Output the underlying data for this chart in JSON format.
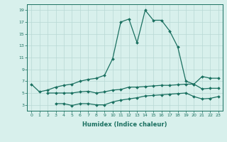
{
  "xlabel": "Humidex (Indice chaleur)",
  "x_values": [
    0,
    1,
    2,
    3,
    4,
    5,
    6,
    7,
    8,
    9,
    10,
    11,
    12,
    13,
    14,
    15,
    16,
    17,
    18,
    19,
    20,
    21,
    22,
    23
  ],
  "line1": [
    6.5,
    5.2,
    5.5,
    6.0,
    6.3,
    6.5,
    7.0,
    7.3,
    7.5,
    8.0,
    10.8,
    17.0,
    17.5,
    13.5,
    19.0,
    17.3,
    17.3,
    15.5,
    12.8,
    7.0,
    6.5,
    7.8,
    7.5,
    7.5
  ],
  "line2": [
    null,
    null,
    5.0,
    5.0,
    5.0,
    5.0,
    5.2,
    5.3,
    5.0,
    5.2,
    5.5,
    5.6,
    6.0,
    6.0,
    6.1,
    6.2,
    6.3,
    6.3,
    6.4,
    6.5,
    6.5,
    5.7,
    5.8,
    5.8
  ],
  "line3": [
    null,
    null,
    null,
    3.2,
    3.2,
    2.9,
    3.2,
    3.2,
    3.0,
    3.0,
    3.5,
    3.8,
    4.0,
    4.2,
    4.5,
    4.6,
    4.7,
    4.8,
    4.9,
    5.0,
    4.4,
    4.0,
    4.1,
    4.4
  ],
  "line_color": "#1a7060",
  "bg_color": "#d8f0ec",
  "grid_color": "#b8d8d4",
  "ylim": [
    2,
    20
  ],
  "yticks": [
    3,
    5,
    7,
    9,
    11,
    13,
    15,
    17,
    19
  ],
  "xlim": [
    -0.5,
    23.5
  ]
}
